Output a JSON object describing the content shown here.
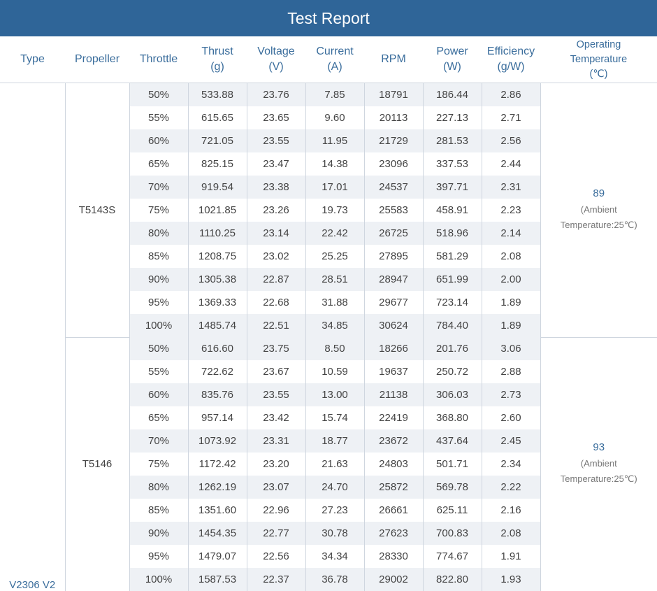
{
  "title": "Test Report",
  "headers": [
    {
      "key": "type",
      "lines": [
        "Type"
      ]
    },
    {
      "key": "propeller",
      "lines": [
        "Propeller"
      ]
    },
    {
      "key": "throttle",
      "lines": [
        "Throttle"
      ]
    },
    {
      "key": "thrust",
      "lines": [
        "Thrust",
        "(g)"
      ]
    },
    {
      "key": "voltage",
      "lines": [
        "Voltage",
        "(V)"
      ]
    },
    {
      "key": "current",
      "lines": [
        "Current",
        "(A)"
      ]
    },
    {
      "key": "rpm",
      "lines": [
        "RPM"
      ]
    },
    {
      "key": "power",
      "lines": [
        "Power",
        "(W)"
      ]
    },
    {
      "key": "efficiency",
      "lines": [
        "Efficiency",
        "(g/W)"
      ]
    },
    {
      "key": "temp",
      "lines": [
        "Operating",
        "Temperature",
        "(℃)"
      ]
    }
  ],
  "type": "V2306 V2",
  "groups": [
    {
      "propeller": "T5143S",
      "temperature": "89",
      "ambient": [
        "(Ambient",
        "Temperature:25℃)"
      ],
      "rows": [
        [
          "50%",
          "533.88",
          "23.76",
          "7.85",
          "18791",
          "186.44",
          "2.86"
        ],
        [
          "55%",
          "615.65",
          "23.65",
          "9.60",
          "20113",
          "227.13",
          "2.71"
        ],
        [
          "60%",
          "721.05",
          "23.55",
          "11.95",
          "21729",
          "281.53",
          "2.56"
        ],
        [
          "65%",
          "825.15",
          "23.47",
          "14.38",
          "23096",
          "337.53",
          "2.44"
        ],
        [
          "70%",
          "919.54",
          "23.38",
          "17.01",
          "24537",
          "397.71",
          "2.31"
        ],
        [
          "75%",
          "1021.85",
          "23.26",
          "19.73",
          "25583",
          "458.91",
          "2.23"
        ],
        [
          "80%",
          "1110.25",
          "23.14",
          "22.42",
          "26725",
          "518.96",
          "2.14"
        ],
        [
          "85%",
          "1208.75",
          "23.02",
          "25.25",
          "27895",
          "581.29",
          "2.08"
        ],
        [
          "90%",
          "1305.38",
          "22.87",
          "28.51",
          "28947",
          "651.99",
          "2.00"
        ],
        [
          "95%",
          "1369.33",
          "22.68",
          "31.88",
          "29677",
          "723.14",
          "1.89"
        ],
        [
          "100%",
          "1485.74",
          "22.51",
          "34.85",
          "30624",
          "784.40",
          "1.89"
        ]
      ]
    },
    {
      "propeller": "T5146",
      "temperature": "93",
      "ambient": [
        "(Ambient",
        "Temperature:25℃)"
      ],
      "rows": [
        [
          "50%",
          "616.60",
          "23.75",
          "8.50",
          "18266",
          "201.76",
          "3.06"
        ],
        [
          "55%",
          "722.62",
          "23.67",
          "10.59",
          "19637",
          "250.72",
          "2.88"
        ],
        [
          "60%",
          "835.76",
          "23.55",
          "13.00",
          "21138",
          "306.03",
          "2.73"
        ],
        [
          "65%",
          "957.14",
          "23.42",
          "15.74",
          "22419",
          "368.80",
          "2.60"
        ],
        [
          "70%",
          "1073.92",
          "23.31",
          "18.77",
          "23672",
          "437.64",
          "2.45"
        ],
        [
          "75%",
          "1172.42",
          "23.20",
          "21.63",
          "24803",
          "501.71",
          "2.34"
        ],
        [
          "80%",
          "1262.19",
          "23.07",
          "24.70",
          "25872",
          "569.78",
          "2.22"
        ],
        [
          "85%",
          "1351.60",
          "22.96",
          "27.23",
          "26661",
          "625.11",
          "2.16"
        ],
        [
          "90%",
          "1454.35",
          "22.77",
          "30.78",
          "27623",
          "700.83",
          "2.08"
        ],
        [
          "95%",
          "1479.07",
          "22.56",
          "34.34",
          "28330",
          "774.67",
          "1.91"
        ],
        [
          "100%",
          "1587.53",
          "22.37",
          "36.78",
          "29002",
          "822.80",
          "1.93"
        ]
      ]
    }
  ]
}
